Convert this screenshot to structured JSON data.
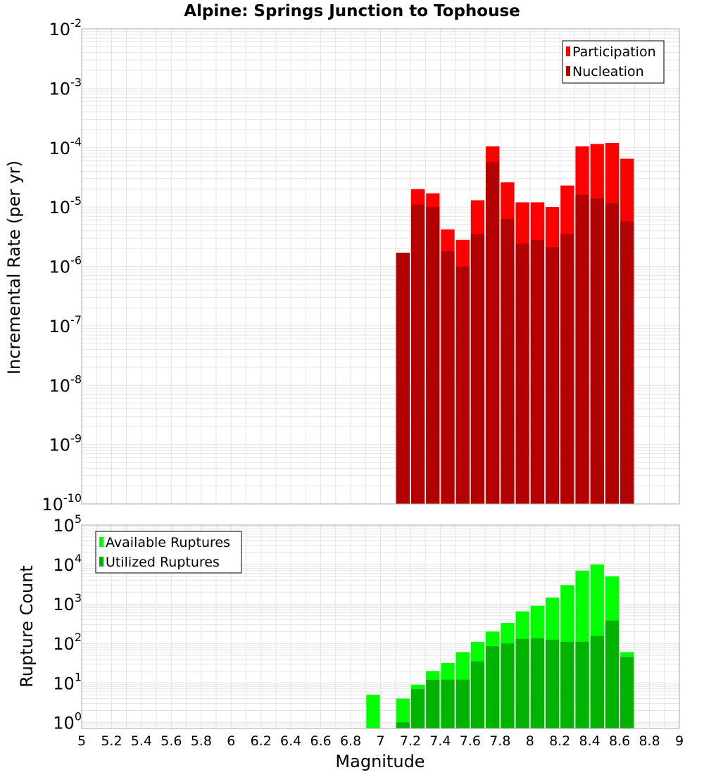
{
  "title": "Alpine: Springs Junction to Tophouse",
  "xlabel": "Magnitude",
  "x_ticks": [
    "5",
    "5.2",
    "5.4",
    "5.6",
    "5.8",
    "6",
    "6.2",
    "6.4",
    "6.6",
    "6.8",
    "7",
    "7.2",
    "7.4",
    "7.6",
    "7.8",
    "8",
    "8.2",
    "8.4",
    "8.6",
    "8.8",
    "9"
  ],
  "colors": {
    "participation": "#ff0000",
    "nucleation": "#b30000",
    "available": "#00ff00",
    "utilized": "#00b300",
    "grid": "#e4e4e4"
  },
  "chart_data": [
    {
      "type": "bar",
      "scale": "log",
      "ylabel": "Incremental Rate (per yr)",
      "xlim": [
        5,
        9
      ],
      "ylim": [
        1e-10,
        0.01
      ],
      "y_ticks": [
        {
          "base": "10",
          "exp": "-2"
        },
        {
          "base": "10",
          "exp": "-3"
        },
        {
          "base": "10",
          "exp": "-4"
        },
        {
          "base": "10",
          "exp": "-5"
        },
        {
          "base": "10",
          "exp": "-6"
        },
        {
          "base": "10",
          "exp": "-7"
        },
        {
          "base": "10",
          "exp": "-8"
        },
        {
          "base": "10",
          "exp": "-9"
        },
        {
          "base": "10",
          "exp": "-10"
        }
      ],
      "legend_position": "top-right",
      "x": [
        7.15,
        7.25,
        7.35,
        7.45,
        7.55,
        7.65,
        7.75,
        7.85,
        7.95,
        8.05,
        8.15,
        8.25,
        8.35,
        8.45,
        8.55,
        8.65
      ],
      "series": [
        {
          "name": "Participation",
          "color": "participation",
          "values": [
            1.7e-06,
            2e-05,
            1.7e-05,
            4.2e-06,
            2.8e-06,
            1.3e-05,
            0.000105,
            2.6e-05,
            1.2e-05,
            1.2e-05,
            1e-05,
            2.3e-05,
            0.000105,
            0.000115,
            0.00012,
            6.5e-05
          ]
        },
        {
          "name": "Nucleation",
          "color": "nucleation",
          "values": [
            1.7e-06,
            1.1e-05,
            1e-05,
            1.8e-06,
            1e-06,
            3.5e-06,
            5.7e-05,
            6.3e-06,
            2.4e-06,
            2.8e-06,
            2.1e-06,
            3.5e-06,
            1.6e-05,
            1.4e-05,
            1.15e-05,
            5.7e-06
          ]
        }
      ]
    },
    {
      "type": "bar",
      "scale": "log",
      "ylabel": "Rupture Count",
      "xlim": [
        5,
        9
      ],
      "ylim": [
        0.7,
        100000.0
      ],
      "y_ticks": [
        {
          "base": "10",
          "exp": "5"
        },
        {
          "base": "10",
          "exp": "4"
        },
        {
          "base": "10",
          "exp": "3"
        },
        {
          "base": "10",
          "exp": "2"
        },
        {
          "base": "10",
          "exp": "1"
        },
        {
          "base": "10",
          "exp": "0"
        }
      ],
      "legend_position": "top-left",
      "x": [
        6.95,
        7.15,
        7.25,
        7.35,
        7.45,
        7.55,
        7.65,
        7.75,
        7.85,
        7.95,
        8.05,
        8.15,
        8.25,
        8.35,
        8.45,
        8.55,
        8.65
      ],
      "series": [
        {
          "name": "Available Ruptures",
          "color": "available",
          "values": [
            5,
            4,
            9,
            20,
            32,
            60,
            110,
            200,
            330,
            650,
            900,
            1450,
            3000,
            7000,
            10000,
            5000,
            60
          ]
        },
        {
          "name": "Utilized Ruptures",
          "color": "utilized",
          "values": [
            0,
            1,
            7,
            12,
            12,
            12,
            35,
            85,
            100,
            130,
            135,
            125,
            110,
            110,
            155,
            380,
            45
          ]
        }
      ]
    }
  ]
}
